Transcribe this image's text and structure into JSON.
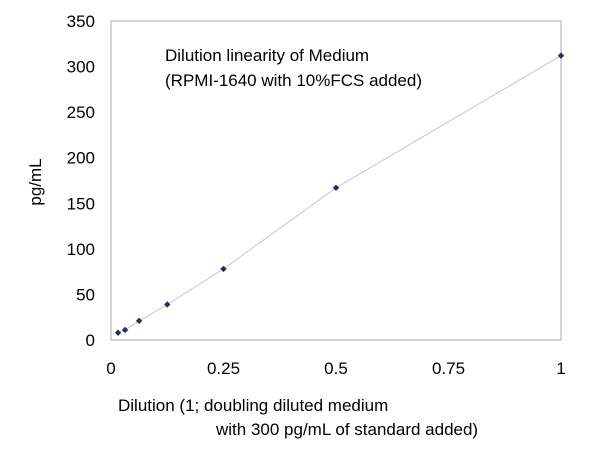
{
  "chart_data": {
    "type": "scatter",
    "annotation": [
      "Dilution linearity of Medium",
      "(RPMI-1640 with 10%FCS added)"
    ],
    "xlabel": [
      "Dilution (1; doubling diluted medium",
      "with 300 pg/mL of standard added)"
    ],
    "ylabel": "pg/mL",
    "xlim": [
      0,
      1
    ],
    "ylim": [
      0,
      350
    ],
    "xticks": [
      0,
      0.25,
      0.5,
      0.75,
      1
    ],
    "xtick_labels": [
      "0",
      "0.25",
      "0.5",
      "0.75",
      "1"
    ],
    "yticks": [
      0,
      50,
      100,
      150,
      200,
      250,
      300,
      350
    ],
    "ytick_labels": [
      "0",
      "50",
      "100",
      "150",
      "200",
      "250",
      "300",
      "350"
    ],
    "grid": false,
    "connected": true,
    "series": [
      {
        "x": [
          0.015625,
          0.03125,
          0.0625,
          0.125,
          0.25,
          0.5,
          1
        ],
        "y": [
          8,
          11,
          21,
          39,
          78,
          167,
          312
        ]
      }
    ],
    "colors": {
      "marker": "#1f2f6b",
      "line": "#c8c8c8",
      "frame": "#a8a8a8"
    }
  }
}
